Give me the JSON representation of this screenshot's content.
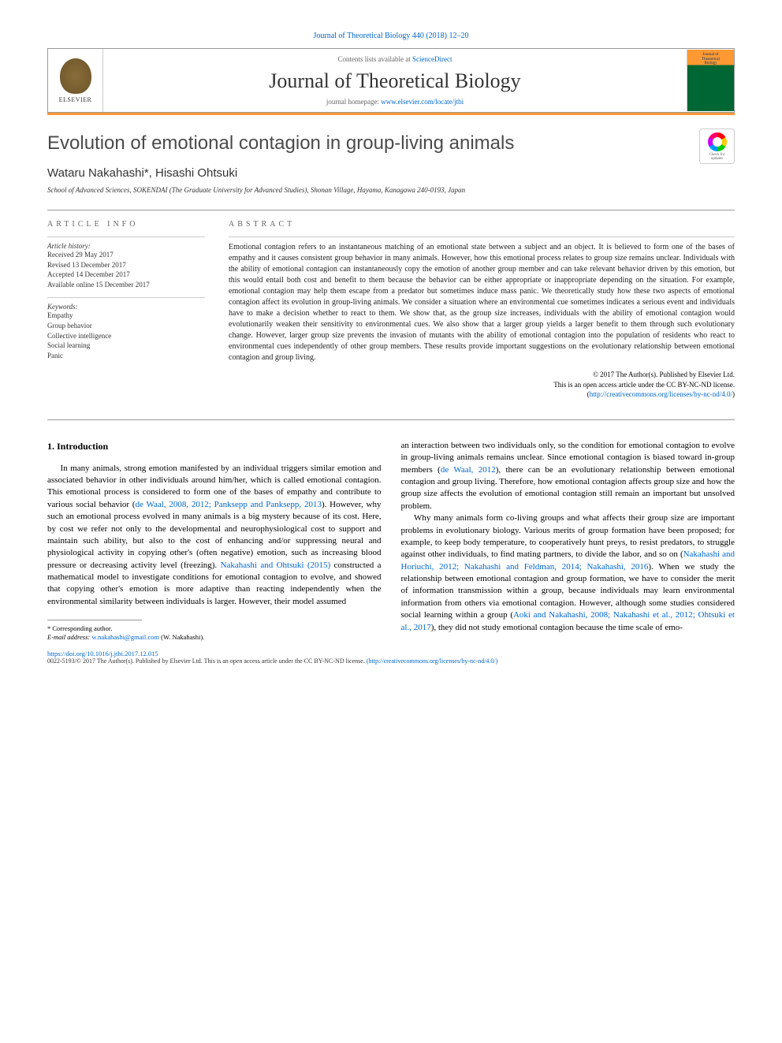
{
  "journal_ref": "Journal of Theoretical Biology 440 (2018) 12–20",
  "header": {
    "contents_text": "Contents lists available at ",
    "contents_link": "ScienceDirect",
    "journal_name": "Journal of Theoretical Biology",
    "homepage_text": "journal homepage: ",
    "homepage_link": "www.elsevier.com/locate/jtbi",
    "publisher": "ELSEVIER",
    "cover_line1": "Journal of",
    "cover_line2": "Theoretical",
    "cover_line3": "Biology"
  },
  "crossmark": {
    "line1": "Check for",
    "line2": "updates"
  },
  "title": "Evolution of emotional contagion in group-living animals",
  "authors": "Wataru Nakahashi*, Hisashi Ohtsuki",
  "affiliation": "School of Advanced Sciences, SOKENDAI (The Graduate University for Advanced Studies), Shonan Village, Hayama, Kanagawa 240-0193, Japan",
  "info": {
    "heading": "ARTICLE INFO",
    "history_label": "Article history:",
    "received": "Received 29 May 2017",
    "revised": "Revised 13 December 2017",
    "accepted": "Accepted 14 December 2017",
    "online": "Available online 15 December 2017",
    "keywords_label": "Keywords:",
    "keywords": [
      "Empathy",
      "Group behavior",
      "Collective intelligence",
      "Social learning",
      "Panic"
    ]
  },
  "abstract": {
    "heading": "ABSTRACT",
    "text": "Emotional contagion refers to an instantaneous matching of an emotional state between a subject and an object. It is believed to form one of the bases of empathy and it causes consistent group behavior in many animals. However, how this emotional process relates to group size remains unclear. Individuals with the ability of emotional contagion can instantaneously copy the emotion of another group member and can take relevant behavior driven by this emotion, but this would entail both cost and benefit to them because the behavior can be either appropriate or inappropriate depending on the situation. For example, emotional contagion may help them escape from a predator but sometimes induce mass panic. We theoretically study how these two aspects of emotional contagion affect its evolution in group-living animals. We consider a situation where an environmental cue sometimes indicates a serious event and individuals have to make a decision whether to react to them. We show that, as the group size increases, individuals with the ability of emotional contagion would evolutionarily weaken their sensitivity to environmental cues. We also show that a larger group yields a larger benefit to them through such evolutionary change. However, larger group size prevents the invasion of mutants with the ability of emotional contagion into the population of residents who react to environmental cues independently of other group members. These results provide important suggestions on the evolutionary relationship between emotional contagion and group living."
  },
  "copyright": {
    "line1": "© 2017 The Author(s). Published by Elsevier Ltd.",
    "line2": "This is an open access article under the CC BY-NC-ND license.",
    "link": "http://creativecommons.org/licenses/by-nc-nd/4.0/"
  },
  "section1": {
    "heading": "1. Introduction",
    "col1_p1a": "In many animals, strong emotion manifested by an individual triggers similar emotion and associated behavior in other individuals around him/her, which is called emotional contagion. This emotional process is considered to form one of the bases of empathy and contribute to various social behavior (",
    "col1_ref1": "de Waal, 2008, 2012; Panksepp and Panksepp, 2013",
    "col1_p1b": "). However, why such an emotional process evolved in many animals is a big mystery because of its cost. Here, by cost we refer not only to the developmental and neurophysiological cost to support and maintain such ability, but also to the cost of enhancing and/or suppressing neural and physiological activity in copying other's (often negative) emotion, such as increasing blood pressure or decreasing activity level (freezing). ",
    "col1_ref2": "Nakahashi and Ohtsuki (2015)",
    "col1_p1c": " constructed a mathematical model to investigate conditions for emotional contagion to evolve, and showed that copying other's emotion is more adaptive than reacting independently when the environmental similarity between individuals is larger. However, their model assumed",
    "col2_p1a": "an interaction between two individuals only, so the condition for emotional contagion to evolve in group-living animals remains unclear. Since emotional contagion is biased toward in-group members (",
    "col2_ref1": "de Waal, 2012",
    "col2_p1b": "), there can be an evolutionary relationship between emotional contagion and group living. Therefore, how emotional contagion affects group size and how the group size affects the evolution of emotional contagion still remain an important but unsolved problem.",
    "col2_p2a": "Why many animals form co-living groups and what affects their group size are important problems in evolutionary biology. Various merits of group formation have been proposed; for example, to keep body temperature, to cooperatively hunt preys, to resist predators, to struggle against other individuals, to find mating partners, to divide the labor, and so on (",
    "col2_ref2": "Nakahashi and Horiuchi, 2012; Nakahashi and Feldman, 2014; Nakahashi, 2016",
    "col2_p2b": "). When we study the relationship between emotional contagion and group formation, we have to consider the merit of information transmission within a group, because individuals may learn environmental information from others via emotional contagion. However, although some studies considered social learning within a group (",
    "col2_ref3": "Aoki and Nakahashi, 2008; Nakahashi et al., 2012; Ohtsuki et al., 2017",
    "col2_p2c": "), they did not study emotional contagion because the time scale of emo-"
  },
  "footnote": {
    "corresp": "* Corresponding author.",
    "email_label": "E-mail address:",
    "email": "w.nakahashi@gmail.com",
    "email_name": "(W. Nakahashi)."
  },
  "bottom": {
    "doi": "https://doi.org/10.1016/j.jtbi.2017.12.015",
    "issn_line": "0022-5193/© 2017 The Author(s). Published by Elsevier Ltd. This is an open access article under the CC BY-NC-ND license. ",
    "license_link": "(http://creativecommons.org/licenses/by-nc-nd/4.0/)"
  },
  "colors": {
    "link": "#0066cc",
    "orange": "#ff9933",
    "text": "#222222"
  }
}
